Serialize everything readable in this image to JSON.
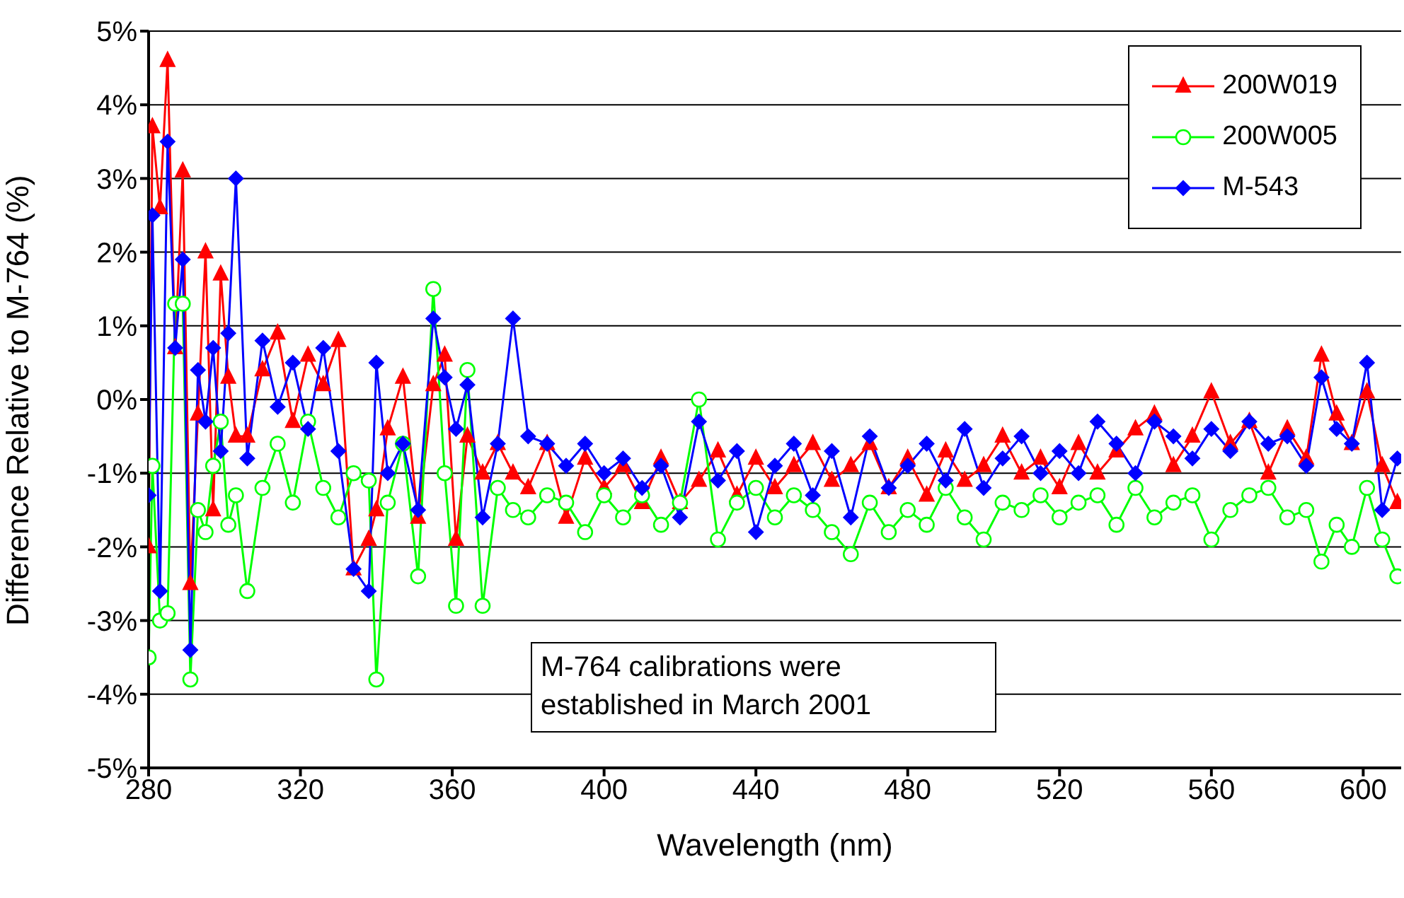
{
  "chart_data": {
    "type": "line",
    "xlabel": "Wavelength (nm)",
    "ylabel": "Difference Relative to M-764 (%)",
    "x": [
      280,
      281,
      283,
      285,
      287,
      289,
      291,
      293,
      295,
      297,
      299,
      301,
      303,
      306,
      310,
      314,
      318,
      322,
      326,
      330,
      334,
      338,
      340,
      343,
      347,
      351,
      355,
      358,
      361,
      364,
      368,
      372,
      376,
      380,
      385,
      390,
      395,
      400,
      405,
      410,
      415,
      420,
      425,
      430,
      435,
      440,
      445,
      450,
      455,
      460,
      465,
      470,
      475,
      480,
      485,
      490,
      495,
      500,
      505,
      510,
      515,
      520,
      525,
      530,
      535,
      540,
      545,
      550,
      555,
      560,
      565,
      570,
      575,
      580,
      585,
      589,
      593,
      597,
      601,
      605,
      609
    ],
    "series": [
      {
        "name": "200W019",
        "color": "#ff0000",
        "marker": "triangle",
        "values": [
          -2.0,
          3.7,
          2.6,
          4.6,
          0.7,
          3.1,
          -2.5,
          -0.2,
          2.0,
          -1.5,
          1.7,
          0.3,
          -0.5,
          -0.5,
          0.4,
          0.9,
          -0.3,
          0.6,
          0.2,
          0.8,
          -2.3,
          -1.9,
          -1.5,
          -0.4,
          0.3,
          -1.6,
          0.2,
          0.6,
          -1.9,
          -0.5,
          -1.0,
          -0.6,
          -1.0,
          -1.2,
          -0.6,
          -1.6,
          -0.8,
          -1.2,
          -0.9,
          -1.4,
          -0.8,
          -1.4,
          -1.1,
          -0.7,
          -1.3,
          -0.8,
          -1.2,
          -0.9,
          -0.6,
          -1.1,
          -0.9,
          -0.6,
          -1.2,
          -0.8,
          -1.3,
          -0.7,
          -1.1,
          -0.9,
          -0.5,
          -1.0,
          -0.8,
          -1.2,
          -0.6,
          -1.0,
          -0.7,
          -0.4,
          -0.2,
          -0.9,
          -0.5,
          0.1,
          -0.6,
          -0.3,
          -1.0,
          -0.4,
          -0.8,
          0.6,
          -0.2,
          -0.6,
          0.1,
          -0.9,
          -1.4
        ]
      },
      {
        "name": "200W005",
        "color": "#00ff00",
        "marker": "circle",
        "values": [
          -3.5,
          -0.9,
          -3.0,
          -2.9,
          1.3,
          1.3,
          -3.8,
          -1.5,
          -1.8,
          -0.9,
          -0.3,
          -1.7,
          -1.3,
          -2.6,
          -1.2,
          -0.6,
          -1.4,
          -0.3,
          -1.2,
          -1.6,
          -1.0,
          -1.1,
          -3.8,
          -1.4,
          -0.6,
          -2.4,
          1.5,
          -1.0,
          -2.8,
          0.4,
          -2.8,
          -1.2,
          -1.5,
          -1.6,
          -1.3,
          -1.4,
          -1.8,
          -1.3,
          -1.6,
          -1.3,
          -1.7,
          -1.4,
          0.0,
          -1.9,
          -1.4,
          -1.2,
          -1.6,
          -1.3,
          -1.5,
          -1.8,
          -2.1,
          -1.4,
          -1.8,
          -1.5,
          -1.7,
          -1.2,
          -1.6,
          -1.9,
          -1.4,
          -1.5,
          -1.3,
          -1.6,
          -1.4,
          -1.3,
          -1.7,
          -1.2,
          -1.6,
          -1.4,
          -1.3,
          -1.9,
          -1.5,
          -1.3,
          -1.2,
          -1.6,
          -1.5,
          -2.2,
          -1.7,
          -2.0,
          -1.2,
          -1.9,
          -2.4
        ]
      },
      {
        "name": "M-543",
        "color": "#0000ff",
        "marker": "diamond",
        "values": [
          -1.3,
          2.5,
          -2.6,
          3.5,
          0.7,
          1.9,
          -3.4,
          0.4,
          -0.3,
          0.7,
          -0.7,
          0.9,
          3.0,
          -0.8,
          0.8,
          -0.1,
          0.5,
          -0.4,
          0.7,
          -0.7,
          -2.3,
          -2.6,
          0.5,
          -1.0,
          -0.6,
          -1.5,
          1.1,
          0.3,
          -0.4,
          0.2,
          -1.6,
          -0.6,
          1.1,
          -0.5,
          -0.6,
          -0.9,
          -0.6,
          -1.0,
          -0.8,
          -1.2,
          -0.9,
          -1.6,
          -0.3,
          -1.1,
          -0.7,
          -1.8,
          -0.9,
          -0.6,
          -1.3,
          -0.7,
          -1.6,
          -0.5,
          -1.2,
          -0.9,
          -0.6,
          -1.1,
          -0.4,
          -1.2,
          -0.8,
          -0.5,
          -1.0,
          -0.7,
          -1.0,
          -0.3,
          -0.6,
          -1.0,
          -0.3,
          -0.5,
          -0.8,
          -0.4,
          -0.7,
          -0.3,
          -0.6,
          -0.5,
          -0.9,
          0.3,
          -0.4,
          -0.6,
          0.5,
          -1.5,
          -0.8
        ]
      }
    ],
    "xlim": [
      280,
      610
    ],
    "xticks": [
      280,
      320,
      360,
      400,
      440,
      480,
      520,
      560,
      600
    ],
    "ylim": [
      -5,
      5
    ],
    "yticks": [
      {
        "value": -5,
        "label": "-5%"
      },
      {
        "value": -4,
        "label": "-4%"
      },
      {
        "value": -3,
        "label": "-3%"
      },
      {
        "value": -2,
        "label": "-2%"
      },
      {
        "value": -1,
        "label": "-1%"
      },
      {
        "value": 0,
        "label": "0%"
      },
      {
        "value": 1,
        "label": "1%"
      },
      {
        "value": 2,
        "label": "2%"
      },
      {
        "value": 3,
        "label": "3%"
      },
      {
        "value": 4,
        "label": "4%"
      },
      {
        "value": 5,
        "label": "5%"
      }
    ],
    "grid": "y",
    "legend": "top right",
    "line_style": "solid",
    "annotations": [
      "M-764 calibrations were established in March 2001"
    ]
  }
}
